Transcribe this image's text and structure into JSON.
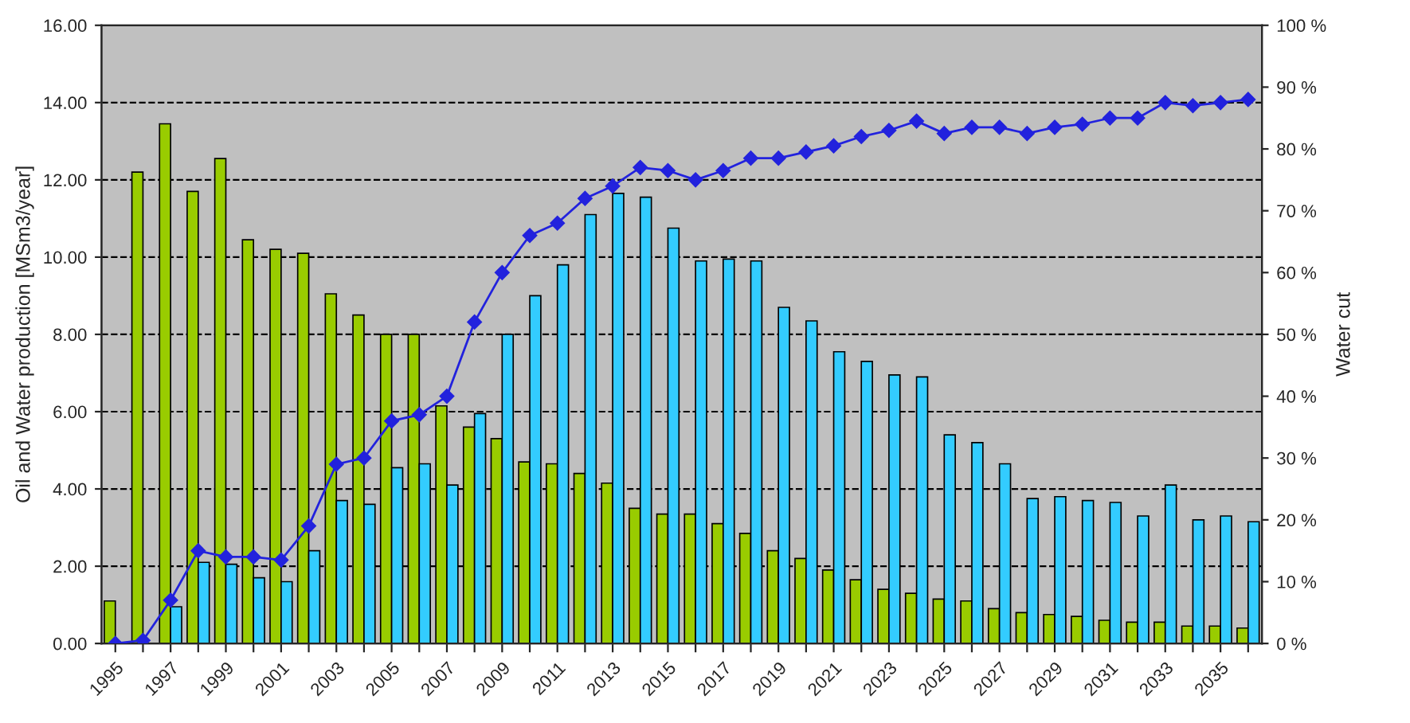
{
  "chart_data": {
    "type": "bar",
    "ylabel": "Oil and Water production [MSm3/year]",
    "y2label": "Water cut",
    "categories": [
      "1995",
      null,
      "1997",
      null,
      "1999",
      null,
      "2001",
      null,
      "2003",
      null,
      "2005",
      null,
      "2007",
      null,
      "2009",
      null,
      "2011",
      null,
      "2013",
      null,
      "2015",
      null,
      "2017",
      null,
      "2019",
      null,
      "2021",
      null,
      "2023",
      null,
      "2025",
      null,
      "2027",
      null,
      "2029",
      null,
      "2031",
      null,
      "2033",
      null,
      "2035",
      null
    ],
    "series": [
      {
        "color": "#99cc00",
        "values": [
          1.1,
          12.2,
          13.45,
          11.7,
          12.55,
          10.45,
          10.2,
          10.1,
          9.05,
          8.5,
          8.0,
          8.0,
          6.15,
          5.6,
          5.3,
          4.7,
          4.65,
          4.4,
          4.15,
          3.5,
          3.35,
          3.35,
          3.1,
          2.85,
          2.4,
          2.2,
          1.9,
          1.65,
          1.4,
          1.3,
          1.15,
          1.1,
          0.9,
          0.8,
          0.75,
          0.7,
          0.6,
          0.55,
          0.55,
          0.45,
          0.45,
          0.4
        ]
      },
      {
        "color": "#33ccff",
        "values": [
          0,
          null,
          0.95,
          2.1,
          2.05,
          1.7,
          1.6,
          2.4,
          3.7,
          3.6,
          4.55,
          4.65,
          4.1,
          5.95,
          8.0,
          9.0,
          9.8,
          11.1,
          11.65,
          11.55,
          10.75,
          9.9,
          9.95,
          9.9,
          8.7,
          8.35,
          7.55,
          7.3,
          6.95,
          6.9,
          5.4,
          5.2,
          4.65,
          3.75,
          3.8,
          3.7,
          3.65,
          3.3,
          4.1,
          3.2,
          3.3,
          3.15
        ]
      },
      {
        "type": "line",
        "axis": "y2",
        "color": "#2222dd",
        "marker": "diamond",
        "line_style": "solid",
        "values": [
          0,
          0.5,
          7,
          15,
          14,
          14,
          13.5,
          19,
          29,
          30,
          36,
          37,
          40,
          52,
          60,
          66,
          68,
          72,
          74,
          77,
          76.5,
          75,
          76.5,
          78.5,
          78.5,
          79.5,
          80.5,
          82,
          83,
          84.5,
          82.5,
          83.5,
          83.5,
          82.5,
          83.5,
          84,
          85,
          85,
          87.5,
          87,
          87.5,
          88
        ]
      }
    ],
    "ylim": [
      0,
      16
    ],
    "yticks": [
      {
        "value": 0,
        "label": "0.00"
      },
      {
        "value": 2,
        "label": "2.00"
      },
      {
        "value": 4,
        "label": "4.00"
      },
      {
        "value": 6,
        "label": "6.00"
      },
      {
        "value": 8,
        "label": "8.00"
      },
      {
        "value": 10,
        "label": "10.00"
      },
      {
        "value": 12,
        "label": "12.00"
      },
      {
        "value": 14,
        "label": "14.00"
      },
      {
        "value": 16,
        "label": "16.00"
      }
    ],
    "y2lim": [
      0,
      100
    ],
    "y2ticks": [
      {
        "value": 0,
        "label": "0 %"
      },
      {
        "value": 10,
        "label": "10 %"
      },
      {
        "value": 20,
        "label": "20 %"
      },
      {
        "value": 30,
        "label": "30 %"
      },
      {
        "value": 40,
        "label": "40 %"
      },
      {
        "value": 50,
        "label": "50 %"
      },
      {
        "value": 60,
        "label": "60 %"
      },
      {
        "value": 70,
        "label": "70 %"
      },
      {
        "value": 80,
        "label": "80 %"
      },
      {
        "value": 90,
        "label": "90 %"
      },
      {
        "value": 100,
        "label": "100 %"
      }
    ],
    "grid": "y",
    "legend": false
  }
}
